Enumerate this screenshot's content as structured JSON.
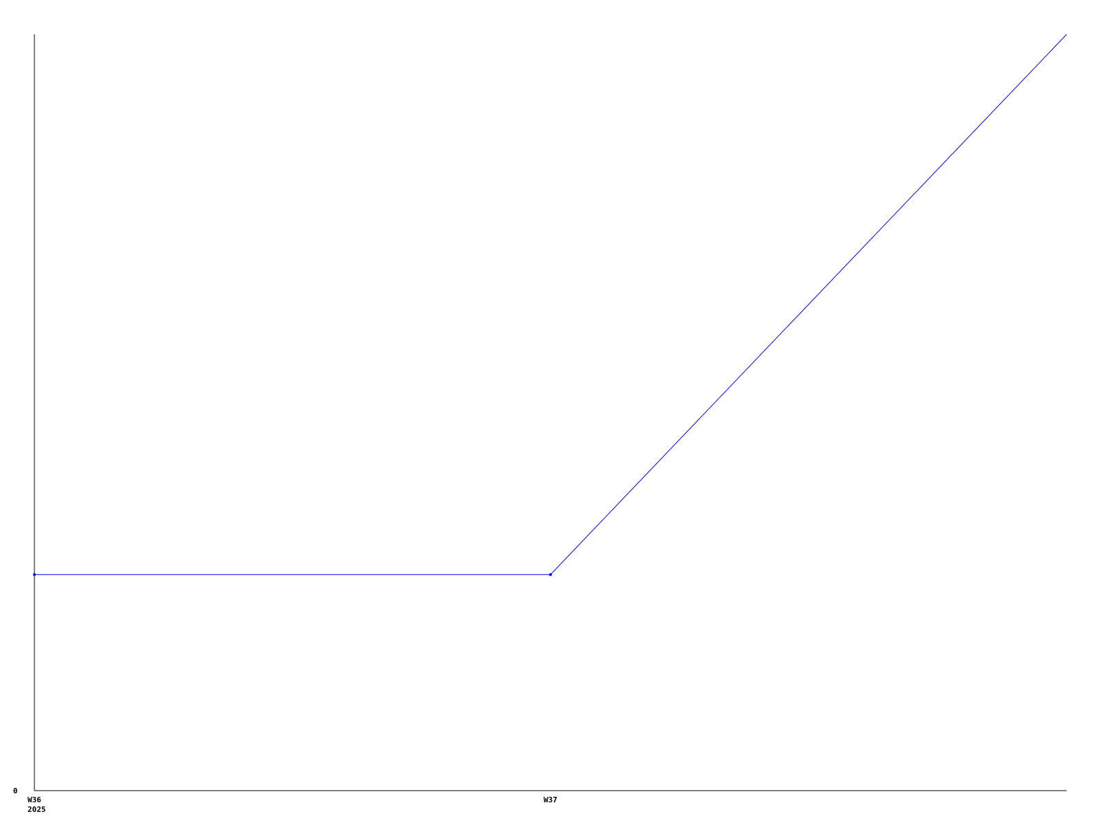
{
  "chart_data": {
    "type": "line",
    "title": "",
    "xlabel": "",
    "ylabel": "",
    "x": [
      36,
      37,
      38
    ],
    "x_tick_labels": [
      {
        "x": 36,
        "lines": [
          "W36",
          "2025"
        ]
      },
      {
        "x": 37,
        "lines": [
          "W37"
        ]
      }
    ],
    "y_tick_labels": [
      {
        "y": 0,
        "label": "0"
      }
    ],
    "xlim": [
      36,
      38
    ],
    "ylim": [
      0,
      7
    ],
    "grid": false,
    "series": [
      {
        "values": [
          2,
          2,
          7
        ],
        "color": "#0000ff"
      }
    ]
  }
}
